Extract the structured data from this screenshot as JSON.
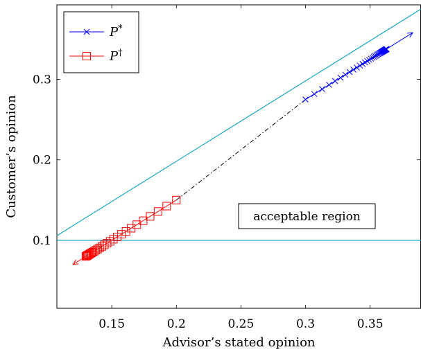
{
  "chart_data": {
    "type": "line",
    "xlabel": "Advisor’s stated opinion",
    "ylabel": "Customer’s opinion",
    "xlim": [
      0.1075,
      0.3894
    ],
    "ylim": [
      0.0155,
      0.3926
    ],
    "xticks": [
      {
        "value": 0.15,
        "label": "0.15"
      },
      {
        "value": 0.2,
        "label": "0.2"
      },
      {
        "value": 0.25,
        "label": "0.25"
      },
      {
        "value": 0.3,
        "label": "0.3"
      },
      {
        "value": 0.35,
        "label": "0.35"
      }
    ],
    "yticks": [
      {
        "value": 0.1,
        "label": "0.1"
      },
      {
        "value": 0.2,
        "label": "0.2"
      },
      {
        "value": 0.3,
        "label": "0.3"
      }
    ],
    "grid": false,
    "legend_position": "top-left",
    "annotation": {
      "text": "acceptable region",
      "x": 0.3,
      "y": 0.13
    },
    "boundary_lines": [
      {
        "name": "diagonal",
        "color": "#1aa7c4",
        "points": [
          [
            0.1075,
            0.1057
          ],
          [
            0.3894,
            0.3874
          ]
        ]
      },
      {
        "name": "horizontal",
        "color": "#1aa7c4",
        "points": [
          [
            0.1075,
            0.1
          ],
          [
            0.3894,
            0.1
          ]
        ]
      }
    ],
    "connector": {
      "style": "dash-dot",
      "color": "#000000",
      "points": [
        [
          0.2,
          0.15
        ],
        [
          0.3,
          0.275
        ]
      ]
    },
    "series": [
      {
        "name": "P*",
        "legend_main": "P",
        "legend_sup": "*",
        "color": "#0000ff",
        "marker": "x",
        "x": [
          0.3,
          0.3068,
          0.3129,
          0.3182,
          0.3229,
          0.3271,
          0.3308,
          0.3341,
          0.3371,
          0.3397,
          0.3421,
          0.3442,
          0.3461,
          0.3478,
          0.3493,
          0.3507,
          0.3519,
          0.353,
          0.354,
          0.3549,
          0.3557,
          0.3564,
          0.3571,
          0.3577,
          0.3582,
          0.3587,
          0.3591,
          0.3595,
          0.3599,
          0.3602,
          0.3605,
          0.3608,
          0.361,
          0.3612,
          0.3614,
          0.3616,
          0.3618,
          0.3619,
          0.362,
          0.3621,
          0.3622,
          0.3623,
          0.3624,
          0.3625,
          0.3626,
          0.3627
        ],
        "y": [
          0.275,
          0.2818,
          0.2879,
          0.2932,
          0.2979,
          0.3021,
          0.3058,
          0.3091,
          0.3121,
          0.3147,
          0.3171,
          0.3192,
          0.3211,
          0.3228,
          0.3243,
          0.3257,
          0.3269,
          0.328,
          0.329,
          0.3299,
          0.3307,
          0.3314,
          0.3321,
          0.3327,
          0.3332,
          0.3337,
          0.3341,
          0.3345,
          0.3349,
          0.3352,
          0.3355,
          0.3358,
          0.336,
          0.3362,
          0.3364,
          0.3366,
          0.3368,
          0.3369,
          0.337,
          0.3371,
          0.3372,
          0.3373,
          0.3374,
          0.3375,
          0.3376,
          0.3377
        ],
        "arrow_to": [
          0.383,
          0.358
        ]
      },
      {
        "name": "P†",
        "legend_main": "P",
        "legend_sup": "†",
        "color": "#ff0000",
        "marker": "square",
        "x": [
          0.2,
          0.1925,
          0.1858,
          0.1797,
          0.1743,
          0.1694,
          0.165,
          0.161,
          0.1575,
          0.1542,
          0.1513,
          0.1487,
          0.1464,
          0.1443,
          0.1424,
          0.1406,
          0.1391,
          0.1377,
          0.1364,
          0.1353,
          0.1343,
          0.1334,
          0.1325,
          0.1318,
          0.1311,
          0.1305,
          0.13
        ],
        "y": [
          0.15,
          0.1425,
          0.1358,
          0.1297,
          0.1243,
          0.1194,
          0.115,
          0.111,
          0.1075,
          0.1042,
          0.1013,
          0.0987,
          0.0964,
          0.0943,
          0.0924,
          0.0906,
          0.0891,
          0.0877,
          0.0864,
          0.0853,
          0.0843,
          0.0834,
          0.0825,
          0.0818,
          0.0811,
          0.0805,
          0.08
        ],
        "arrow_to": [
          0.12,
          0.07
        ]
      }
    ]
  }
}
